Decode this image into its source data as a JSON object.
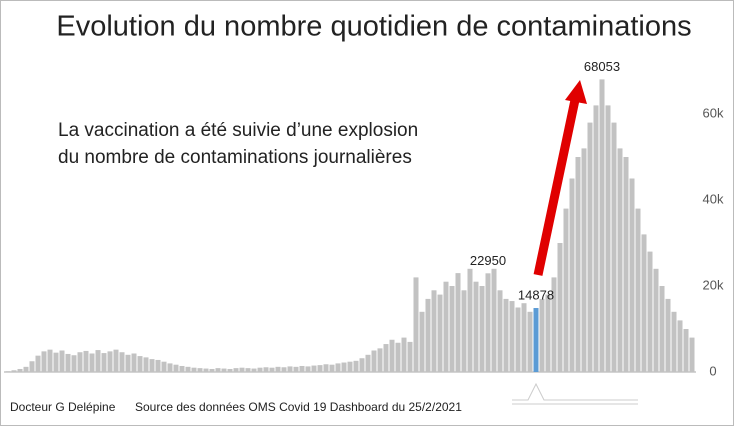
{
  "chart_data": {
    "type": "bar",
    "title": "Evolution du nombre quotidien de contaminations",
    "annotation": [
      "La vaccination a été suivie d’une explosion",
      "du nombre de contaminations journalières"
    ],
    "footer": [
      "Docteur G Delépine",
      "Source des données OMS Covid 19 Dashboard du 25/2/2021"
    ],
    "color": "#c2c2c2",
    "highlight_color": "#5b9bd5",
    "highlight_index": 88,
    "arrow_color": "#e00000",
    "ylim": [
      0,
      70000
    ],
    "yticks": [
      0,
      {
        "value": 20000,
        "label": "20k"
      },
      {
        "value": 40000,
        "label": "40k"
      },
      {
        "value": 60000,
        "label": "60k"
      }
    ],
    "values": [
      200,
      400,
      700,
      1200,
      2500,
      3800,
      4800,
      5200,
      4500,
      5000,
      4200,
      3900,
      4600,
      4900,
      4300,
      5100,
      4400,
      4800,
      5200,
      4600,
      4000,
      4300,
      3700,
      3400,
      3000,
      2800,
      2400,
      2000,
      1700,
      1400,
      1200,
      1000,
      900,
      800,
      700,
      900,
      800,
      700,
      900,
      1000,
      900,
      800,
      1000,
      1100,
      1000,
      1200,
      1100,
      1300,
      1200,
      1400,
      1300,
      1500,
      1600,
      1800,
      1700,
      2000,
      2200,
      2400,
      2600,
      3200,
      4000,
      5000,
      5500,
      6500,
      7500,
      6800,
      8000,
      7000,
      22000,
      14000,
      17000,
      19000,
      18000,
      21000,
      20000,
      23000,
      19000,
      24000,
      21000,
      20000,
      22950,
      24000,
      19000,
      17000,
      16500,
      15000,
      16000,
      14000,
      14878,
      17000,
      18000,
      22000,
      30000,
      38000,
      45000,
      50000,
      52000,
      58000,
      62000,
      68053,
      62000,
      58000,
      52000,
      50000,
      45000,
      38000,
      32000,
      28000,
      24000,
      20000,
      17000,
      14000,
      12000,
      10000,
      8000
    ],
    "value_labels": [
      null,
      null,
      null,
      null,
      null,
      null,
      null,
      null,
      null,
      null,
      null,
      null,
      null,
      null,
      null,
      null,
      null,
      null,
      null,
      null,
      null,
      null,
      null,
      null,
      null,
      null,
      null,
      null,
      null,
      null,
      null,
      null,
      null,
      null,
      null,
      null,
      null,
      null,
      null,
      null,
      null,
      null,
      null,
      null,
      null,
      null,
      null,
      null,
      null,
      null,
      null,
      null,
      null,
      null,
      null,
      null,
      null,
      null,
      null,
      null,
      null,
      null,
      null,
      null,
      null,
      null,
      null,
      null,
      null,
      null,
      null,
      null,
      null,
      null,
      null,
      null,
      null,
      null,
      null,
      null,
      "22950",
      null,
      null,
      null,
      null,
      null,
      null,
      null,
      "14878",
      null,
      null,
      null,
      null,
      null,
      null,
      null,
      null,
      null,
      null,
      "68053",
      null,
      null,
      null,
      null,
      null,
      null,
      null,
      null,
      null,
      null,
      null,
      null,
      null,
      null,
      null
    ]
  }
}
